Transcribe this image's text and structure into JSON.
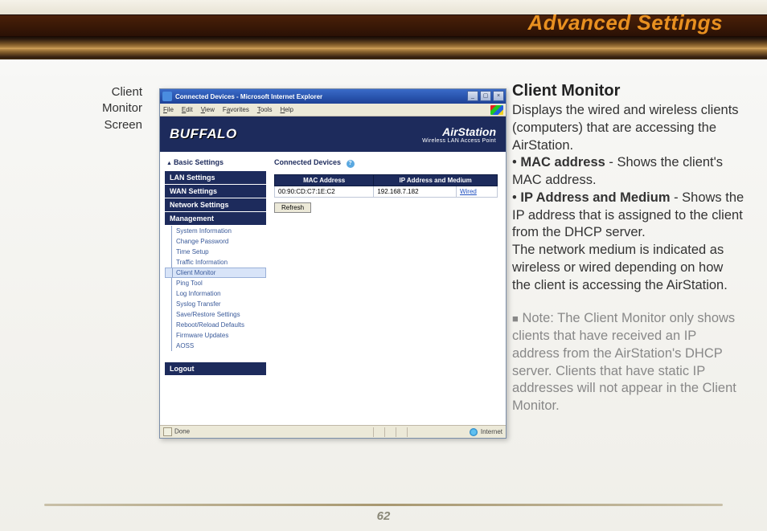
{
  "page": {
    "title": "Advanced Settings",
    "number": "62",
    "left_label_l1": "Client",
    "left_label_l2": "Monitor",
    "left_label_l3": "Screen"
  },
  "ie": {
    "title": "Connected Devices - Microsoft Internet Explorer",
    "menu": {
      "file": "File",
      "edit": "Edit",
      "view": "View",
      "favorites": "Favorites",
      "tools": "Tools",
      "help": "Help"
    },
    "status_done": "Done",
    "status_zone": "Internet",
    "btn_min": "_",
    "btn_max": "▢",
    "btn_close": "×"
  },
  "banner": {
    "brand": "BUFFALO",
    "product": "AirStation",
    "subtitle": "Wireless LAN Access Point"
  },
  "sidebar": {
    "basic": "Basic Settings",
    "cats": {
      "lan": "LAN Settings",
      "wan": "WAN Settings",
      "net": "Network Settings",
      "mgmt": "Management"
    },
    "mgmt_items": [
      "System Information",
      "Change Password",
      "Time Setup",
      "Traffic Information",
      "Client Monitor",
      "Ping Tool",
      "Log Information",
      "Syslog Transfer",
      "Save/Restore Settings",
      "Reboot/Reload Defaults",
      "Firmware Updates",
      "AOSS"
    ],
    "logout": "Logout"
  },
  "panel": {
    "heading": "Connected Devices",
    "help": "?",
    "col_mac": "MAC Address",
    "col_ip": "IP Address and Medium",
    "row_mac": "00:90:CD:C7:1E:C2",
    "row_ip": "192.168.7.182",
    "row_medium": "Wired",
    "refresh": "Refresh"
  },
  "doc": {
    "title": "Client Monitor",
    "p1": "Displays the wired and wireless clients (computers) that are accessing the AirStation.",
    "mac_label": "MAC address",
    "mac_desc": "  - Shows the client's MAC address.",
    "ip_label": "IP Address and Medium",
    "ip_desc": "  - Shows the IP address that is assigned to the client from the DHCP server.",
    "p2": "The network medium is indicated as wireless or wired depending on how the client is accessing the AirStation.",
    "note_label": "Note:",
    "note_body": "   The Client Monitor only shows clients that have received an IP address from the AirStation's DHCP server. Clients that have static IP addresses will not appear in the Client Monitor."
  }
}
